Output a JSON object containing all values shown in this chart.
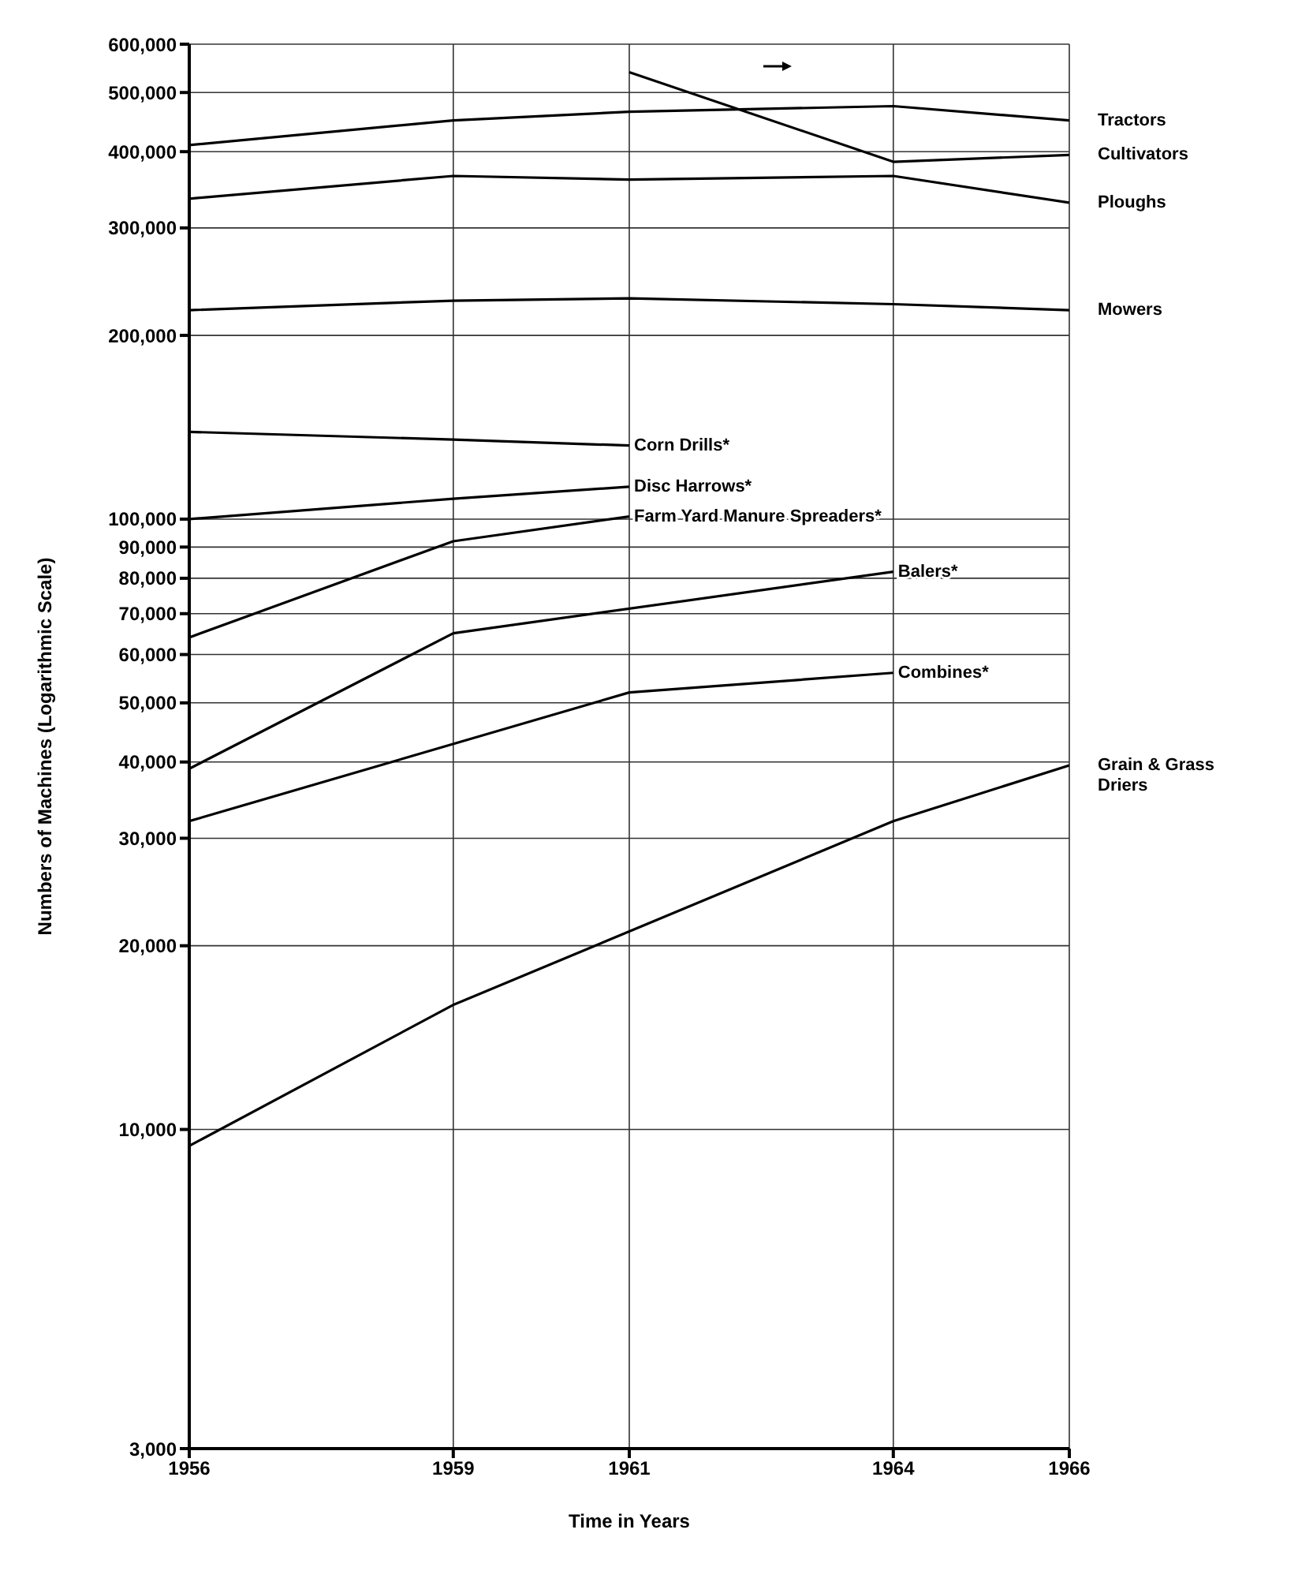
{
  "chart_data": {
    "type": "line",
    "xlabel": "Time in Years",
    "ylabel": "Numbers of Machines (Logarithmic Scale)",
    "xlim": [
      1956,
      1966
    ],
    "xticks": [
      1956,
      1959,
      1961,
      1964,
      1966
    ],
    "ylim": [
      3000,
      600000
    ],
    "yticks": [
      {
        "value": 3000,
        "label": "3,000"
      },
      {
        "value": 10000,
        "label": "10,000"
      },
      {
        "value": 20000,
        "label": "20,000"
      },
      {
        "value": 30000,
        "label": "30,000"
      },
      {
        "value": 40000,
        "label": "40,000"
      },
      {
        "value": 50000,
        "label": "50,000"
      },
      {
        "value": 60000,
        "label": "60,000"
      },
      {
        "value": 70000,
        "label": "70,000"
      },
      {
        "value": 80000,
        "label": "80,000"
      },
      {
        "value": 90000,
        "label": "90,000"
      },
      {
        "value": 100000,
        "label": "100,000"
      },
      {
        "value": 200000,
        "label": "200,000"
      },
      {
        "value": 300000,
        "label": "300,000"
      },
      {
        "value": 400000,
        "label": "400,000"
      },
      {
        "value": 500000,
        "label": "500,000"
      },
      {
        "value": 600000,
        "label": "600,000"
      }
    ],
    "log": true,
    "grid": true,
    "legend": false,
    "line_style": "solid",
    "series": [
      {
        "name": "Tractors",
        "color": "#000000",
        "x": [
          1956,
          1959,
          1961,
          1964,
          1966
        ],
        "values": [
          410000,
          450000,
          465000,
          475000,
          450000
        ]
      },
      {
        "name": "Cultivators",
        "color": "#000000",
        "x": [
          1961,
          1964,
          1966
        ],
        "values": [
          540000,
          385000,
          395000
        ]
      },
      {
        "name": "Ploughs",
        "color": "#000000",
        "x": [
          1956,
          1959,
          1961,
          1964,
          1966
        ],
        "values": [
          335000,
          365000,
          360000,
          365000,
          330000
        ]
      },
      {
        "name": "Mowers",
        "color": "#000000",
        "x": [
          1956,
          1959,
          1961,
          1964,
          1966
        ],
        "values": [
          220000,
          228000,
          230000,
          225000,
          220000
        ]
      },
      {
        "name": "Corn Drills*",
        "color": "#000000",
        "x": [
          1956,
          1959,
          1961
        ],
        "values": [
          139000,
          135000,
          132000
        ]
      },
      {
        "name": "Disc Harrows*",
        "color": "#000000",
        "x": [
          1956,
          1959,
          1961
        ],
        "values": [
          100000,
          108000,
          113000
        ]
      },
      {
        "name": "Farm Yard Manure Spreaders*",
        "color": "#000000",
        "x": [
          1956,
          1959,
          1961
        ],
        "values": [
          64000,
          92000,
          101000
        ]
      },
      {
        "name": "Balers*",
        "color": "#000000",
        "x": [
          1956,
          1959,
          1964
        ],
        "values": [
          39000,
          65000,
          82000
        ]
      },
      {
        "name": "Combines*",
        "color": "#000000",
        "x": [
          1956,
          1961,
          1964
        ],
        "values": [
          32000,
          52000,
          56000
        ]
      },
      {
        "name": "Grain & Grass Driers",
        "color": "#000000",
        "x": [
          1956,
          1959,
          1964,
          1966
        ],
        "values": [
          9400,
          16000,
          32000,
          39500
        ]
      }
    ]
  }
}
